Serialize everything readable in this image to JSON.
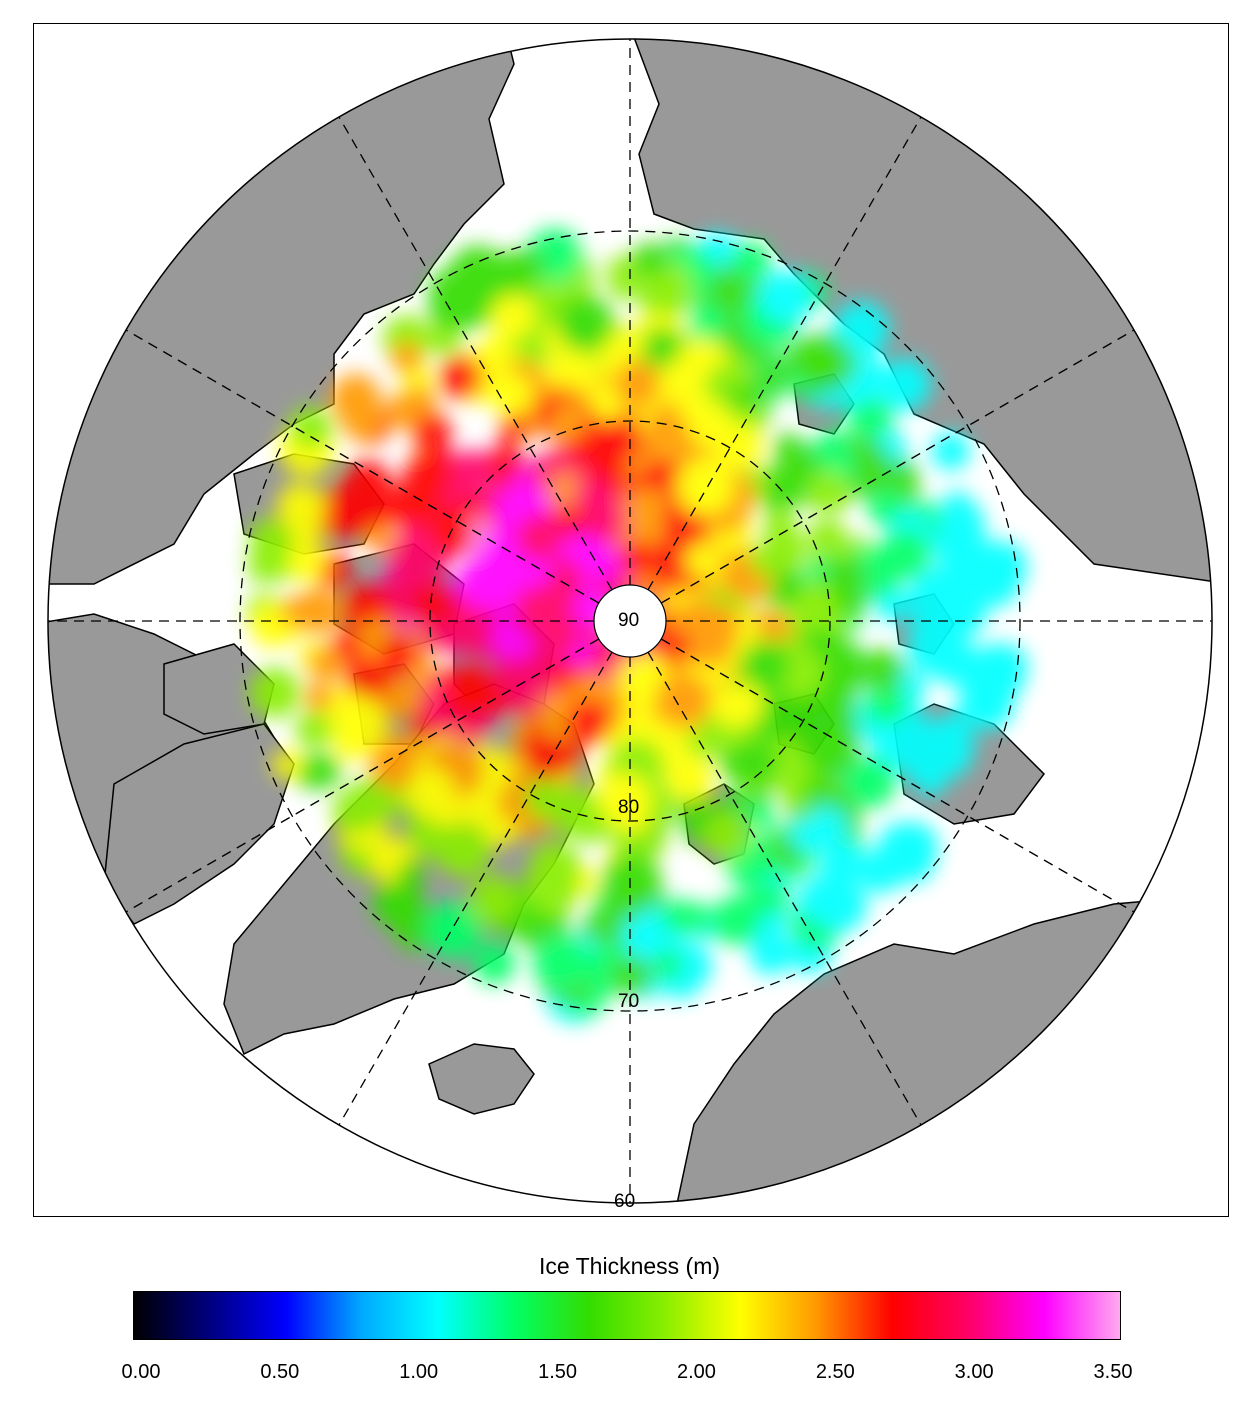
{
  "map": {
    "projection": "north-polar-stereographic",
    "land_color": "#999999",
    "ocean_color": "#ffffff",
    "coastline_color": "#000000",
    "grid_style": "dashed",
    "latitude_labels": [
      "90",
      "80",
      "70",
      "60"
    ]
  },
  "colorbar": {
    "title": "Ice Thickness (m)",
    "min": 0.0,
    "max": 3.5,
    "tick_labels": [
      "0.00",
      "0.50",
      "1.00",
      "1.50",
      "2.00",
      "2.50",
      "3.00",
      "3.50"
    ],
    "colors": [
      "#000000",
      "#000080",
      "#0000ff",
      "#00aaff",
      "#00ffff",
      "#00ff66",
      "#33dd00",
      "#88ee00",
      "#ffff00",
      "#ff9900",
      "#ff0000",
      "#ff0066",
      "#ff00ff",
      "#ffaaee"
    ]
  }
}
